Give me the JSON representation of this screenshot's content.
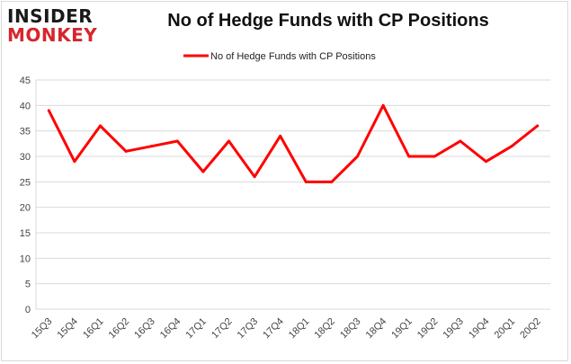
{
  "logo": {
    "line1": "INSIDER",
    "line2": "MONKEY"
  },
  "chart_data": {
    "type": "line",
    "title": "No of Hedge Funds with CP Positions",
    "xlabel": "",
    "ylabel": "",
    "categories": [
      "15Q3",
      "15Q4",
      "16Q1",
      "16Q2",
      "16Q3",
      "16Q4",
      "17Q1",
      "17Q2",
      "17Q3",
      "17Q4",
      "18Q1",
      "18Q2",
      "18Q3",
      "18Q4",
      "19Q1",
      "19Q2",
      "19Q3",
      "19Q4",
      "20Q1",
      "20Q2"
    ],
    "series": [
      {
        "name": "No of Hedge Funds with CP Positions",
        "values": [
          39,
          29,
          36,
          31,
          32,
          33,
          27,
          33,
          26,
          34,
          25,
          25,
          30,
          40,
          30,
          30,
          33,
          29,
          32,
          36
        ],
        "color": "#ff0000"
      }
    ],
    "ylim": [
      0,
      45
    ],
    "yticks": [
      0,
      5,
      10,
      15,
      20,
      25,
      30,
      35,
      40,
      45
    ],
    "grid": true,
    "legend": "top-center"
  }
}
